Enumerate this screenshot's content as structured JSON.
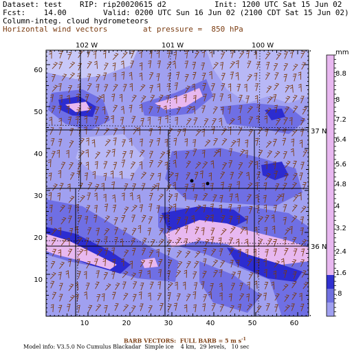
{
  "header": {
    "dataset": "Dataset: test",
    "rip": "RIP: rip20020615 d2",
    "init": "Init: 1200 UTC Sat 15 Jun 02",
    "fcst": "Fcst:    14.00",
    "valid": "Valid: 0200 UTC Sun 16 Jun 02 (2100 CDT Sat 15 Jun 02)",
    "field1": "Column-integ. cloud hydrometeors",
    "field2": "Horizontal wind vectors",
    "pressure": "at pressure =  850 hPa"
  },
  "map": {
    "lon_labels": [
      "102 W",
      "101 W",
      "100 W"
    ],
    "lat_labels": [
      "37 N",
      "36 N"
    ],
    "x_ticks": [
      "10",
      "20",
      "30",
      "40",
      "50",
      "60"
    ],
    "y_ticks": [
      "60",
      "50",
      "40",
      "30",
      "20",
      "10"
    ]
  },
  "colorbar": {
    "unit": "mm",
    "labels": [
      "8.8",
      "8",
      "7.2",
      "6.4",
      "5.6",
      "4.8",
      "4",
      "3.2",
      "2.4",
      "1.6",
      ".8"
    ],
    "colors": [
      "#c8b4f0",
      "#e8b8f0",
      "#7070e0",
      "#3030d0",
      "#a0a0f0"
    ]
  },
  "footer": {
    "barb": "BARB VECTORS:  FULL BARB = 5 m s",
    "model": "Model info: V3.5.0 No Cumulus Blackadar  Simple ice    4 km,  29 levels,   10 sec"
  }
}
